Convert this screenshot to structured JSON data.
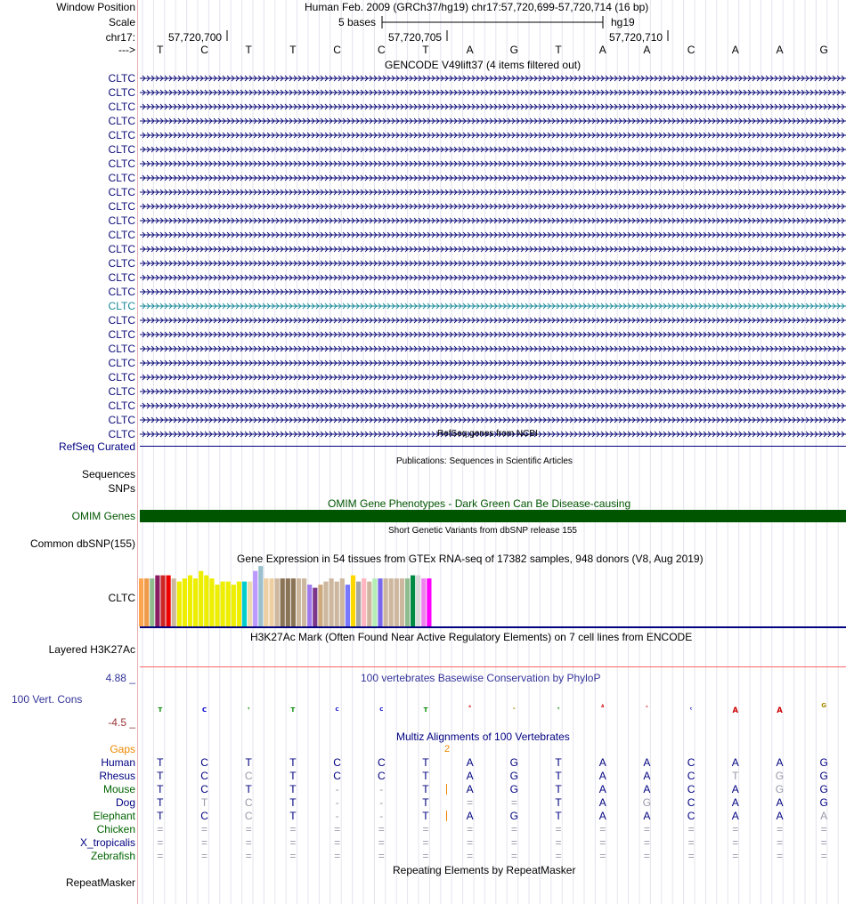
{
  "header": {
    "window_position_label": "Window Position",
    "assembly_line": "Human Feb. 2009 (GRCh37/hg19)   chr17:57,720,699-57,720,714 (16 bp)",
    "scale_label": "Scale",
    "scale_text": "5 bases",
    "assembly": "hg19",
    "chrom_label": "chr17:",
    "ticks": [
      "57,720,700",
      "57,720,705",
      "57,720,710"
    ],
    "strand_label": "--->"
  },
  "sequence": [
    "T",
    "C",
    "T",
    "T",
    "C",
    "C",
    "T",
    "A",
    "G",
    "T",
    "A",
    "A",
    "C",
    "A",
    "A",
    "G"
  ],
  "gencode": {
    "title": "GENCODE V49lift37 (4 items filtered out)",
    "rows": [
      "CLTC",
      "CLTC",
      "CLTC",
      "CLTC",
      "CLTC",
      "CLTC",
      "CLTC",
      "CLTC",
      "CLTC",
      "CLTC",
      "CLTC",
      "CLTC",
      "CLTC",
      "CLTC",
      "CLTC",
      "CLTC",
      "CLTC",
      "CLTC",
      "CLTC",
      "CLTC",
      "CLTC",
      "CLTC",
      "CLTC",
      "CLTC",
      "CLTC",
      "CLTC"
    ],
    "highlight_index": 16,
    "color": "#0c0c78",
    "highlight_color": "#1a8a9a"
  },
  "refseq": {
    "title": "RefSeq genes from NCBI",
    "label": "RefSeq Curated"
  },
  "publications": {
    "title": "Publications: Sequences in Scientific Articles",
    "label1": "Sequences",
    "label2": "SNPs"
  },
  "omim": {
    "title": "OMIM Gene Phenotypes - Dark Green Can Be Disease-causing",
    "label": "OMIM Genes",
    "color": "#005500"
  },
  "dbsnp": {
    "title": "Short Genetic Variants from dbSNP release 155",
    "label": "Common dbSNP(155)"
  },
  "gtex": {
    "title": "Gene Expression in 54 tissues from GTEx RNA-seq of 17382 samples, 948 donors (V8, Aug 2019)",
    "label": "CLTC",
    "bars": [
      {
        "color": "#ffa54f",
        "value": 0.77
      },
      {
        "color": "#ee9a49",
        "value": 0.77
      },
      {
        "color": "#8fbc8f",
        "value": 0.77
      },
      {
        "color": "#8b1c62",
        "value": 0.82
      },
      {
        "color": "#cd2626",
        "value": 0.82
      },
      {
        "color": "#ee0000",
        "value": 0.82
      },
      {
        "color": "#cdb79e",
        "value": 0.77
      },
      {
        "color": "#eeee00",
        "value": 0.72
      },
      {
        "color": "#eeee00",
        "value": 0.77
      },
      {
        "color": "#eeee00",
        "value": 0.82
      },
      {
        "color": "#eeee00",
        "value": 0.77
      },
      {
        "color": "#eeee00",
        "value": 0.89
      },
      {
        "color": "#eeee00",
        "value": 0.82
      },
      {
        "color": "#eeee00",
        "value": 0.77
      },
      {
        "color": "#eeee00",
        "value": 0.67
      },
      {
        "color": "#eeee00",
        "value": 0.72
      },
      {
        "color": "#eeee00",
        "value": 0.72
      },
      {
        "color": "#eeee00",
        "value": 0.67
      },
      {
        "color": "#eeee00",
        "value": 0.72
      },
      {
        "color": "#00cdcd",
        "value": 0.72
      },
      {
        "color": "#eed8ae",
        "value": 0.72
      },
      {
        "color": "#bb99ff",
        "value": 0.89
      },
      {
        "color": "#9ac0cd",
        "value": 0.97
      },
      {
        "color": "#eecfa1",
        "value": 0.77
      },
      {
        "color": "#eecfa1",
        "value": 0.77
      },
      {
        "color": "#cdb79e",
        "value": 0.77
      },
      {
        "color": "#8b7355",
        "value": 0.77
      },
      {
        "color": "#8b7355",
        "value": 0.77
      },
      {
        "color": "#8b7355",
        "value": 0.77
      },
      {
        "color": "#cdb79e",
        "value": 0.77
      },
      {
        "color": "#cdb79e",
        "value": 0.77
      },
      {
        "color": "#9f79ee",
        "value": 0.67
      },
      {
        "color": "#7a378b",
        "value": 0.62
      },
      {
        "color": "#cdaa7d",
        "value": 0.67
      },
      {
        "color": "#cdb79e",
        "value": 0.72
      },
      {
        "color": "#cdb79e",
        "value": 0.77
      },
      {
        "color": "#cdb79e",
        "value": 0.72
      },
      {
        "color": "#cdb79e",
        "value": 0.77
      },
      {
        "color": "#7777ff",
        "value": 0.67
      },
      {
        "color": "#ffd700",
        "value": 0.82
      },
      {
        "color": "#a6a6a6",
        "value": 0.72
      },
      {
        "color": "#ffb6c1",
        "value": 0.77
      },
      {
        "color": "#cdb79e",
        "value": 0.72
      },
      {
        "color": "#b4eeb4",
        "value": 0.77
      },
      {
        "color": "#7a67ee",
        "value": 0.77
      },
      {
        "color": "#cdb79e",
        "value": 0.77
      },
      {
        "color": "#cdb79e",
        "value": 0.77
      },
      {
        "color": "#cdb79e",
        "value": 0.77
      },
      {
        "color": "#cdb79e",
        "value": 0.77
      },
      {
        "color": "#8fbc8f",
        "value": 0.77
      },
      {
        "color": "#008b45",
        "value": 0.82
      },
      {
        "color": "#d9d9d9",
        "value": 0.82
      },
      {
        "color": "#ee82ee",
        "value": 0.77
      },
      {
        "color": "#ff00ff",
        "value": 0.77
      }
    ]
  },
  "h3k27ac": {
    "title": "H3K27Ac Mark (Often Found Near Active Regulatory Elements) on 7 cell lines from ENCODE",
    "label": "Layered H3K27Ac"
  },
  "phylop": {
    "title": "100 vertebrates Basewise Conservation by PhyloP",
    "max_label": "4.88 _",
    "min_label": "-4.5 _",
    "label": "100 Vert. Cons",
    "max": 4.88,
    "min": -4.5,
    "scores": [
      -0.5,
      -0.5,
      -0.25,
      -0.5,
      -0.4,
      -0.4,
      -0.5,
      0.25,
      -0.2,
      -0.25,
      0.3,
      0.2,
      -0.25,
      -0.6,
      -0.6,
      0.5
    ],
    "pos_color": "#0000cc",
    "neg_color": "#cc3333"
  },
  "multiz": {
    "title": "Multiz Alignments of 100 Vertebrates",
    "gaps_label": "Gaps",
    "gap_count": "2",
    "species": [
      {
        "name": "Human",
        "color": "#000080",
        "bases": [
          "T",
          "C",
          "T",
          "T",
          "C",
          "C",
          "T",
          "A",
          "G",
          "T",
          "A",
          "A",
          "C",
          "A",
          "A",
          "G"
        ]
      },
      {
        "name": "Rhesus",
        "color": "#000080",
        "bases": [
          "T",
          "C",
          "C",
          "T",
          "C",
          "C",
          "T",
          "A",
          "G",
          "T",
          "A",
          "A",
          "C",
          "T",
          "G",
          "G"
        ]
      },
      {
        "name": "Mouse",
        "color": "#006400",
        "bases": [
          "T",
          "C",
          "T",
          "T",
          "-",
          "-",
          "T",
          "A",
          "G",
          "T",
          "A",
          "A",
          "C",
          "A",
          "G",
          "G"
        ]
      },
      {
        "name": "Dog",
        "color": "#000080",
        "bases": [
          "T",
          "T",
          "C",
          "T",
          "-",
          "-",
          "T",
          "=",
          "=",
          "T",
          "A",
          "G",
          "C",
          "A",
          "A",
          "G"
        ]
      },
      {
        "name": "Elephant",
        "color": "#006400",
        "bases": [
          "T",
          "C",
          "C",
          "T",
          "-",
          "-",
          "T",
          "A",
          "G",
          "T",
          "A",
          "A",
          "C",
          "A",
          "A",
          "A"
        ]
      },
      {
        "name": "Chicken",
        "color": "#006400",
        "bases": [
          "=",
          "=",
          "=",
          "=",
          "=",
          "=",
          "=",
          "=",
          "=",
          "=",
          "=",
          "=",
          "=",
          "=",
          "=",
          "="
        ]
      },
      {
        "name": "X_tropicalis",
        "color": "#000080",
        "bases": [
          "=",
          "=",
          "=",
          "=",
          "=",
          "=",
          "=",
          "=",
          "=",
          "=",
          "=",
          "=",
          "=",
          "=",
          "=",
          "="
        ]
      },
      {
        "name": "Zebrafish",
        "color": "#006400",
        "bases": [
          "=",
          "=",
          "=",
          "=",
          "=",
          "=",
          "=",
          "=",
          "=",
          "=",
          "=",
          "=",
          "=",
          "=",
          "=",
          "="
        ]
      }
    ],
    "mismatch_color": "#9999aa"
  },
  "repeatmasker": {
    "title": "Repeating Elements by RepeatMasker",
    "label": "RepeatMasker"
  }
}
